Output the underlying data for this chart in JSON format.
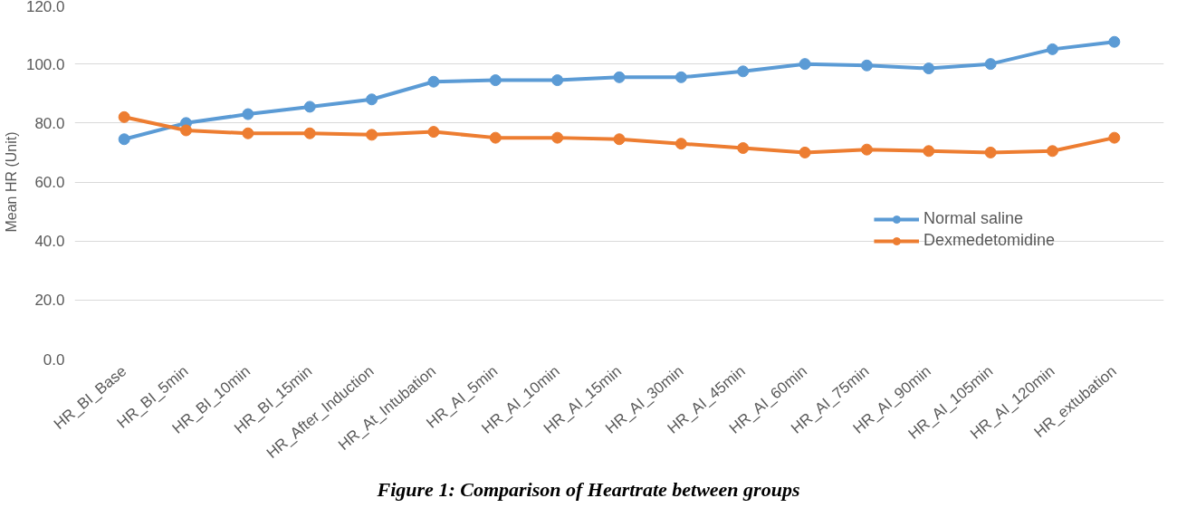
{
  "chart_data": {
    "type": "line",
    "ylabel": "Mean HR (Unit)",
    "categories": [
      "HR_BI_Base",
      "HR_BI_5min",
      "HR_BI_10min",
      "HR_BI_15min",
      "HR_After_Induction",
      "HR_At_Intubation",
      "HR_AI_5min",
      "HR_AI_10min",
      "HR_AI_15min",
      "HR_AI_30min",
      "HR_AI_45min",
      "HR_AI_60min",
      "HR_AI_75min",
      "HR_AI_90min",
      "HR_AI_105min",
      "HR_AI_120min",
      "HR_extubation"
    ],
    "series": [
      {
        "name": "Normal saline",
        "color": "#5b9bd5",
        "values": [
          74.5,
          80,
          83,
          85.5,
          88,
          94,
          94.5,
          94.5,
          95.5,
          95.5,
          97.5,
          100,
          99.5,
          98.5,
          100,
          105,
          107.5
        ]
      },
      {
        "name": "Dexmedetomidine",
        "color": "#ed7d31",
        "values": [
          82,
          77.5,
          76.5,
          76.5,
          76,
          77,
          75,
          75,
          74.5,
          73,
          71.5,
          70,
          71,
          70.5,
          70,
          70.5,
          75
        ]
      }
    ],
    "ylim": [
      0,
      120
    ],
    "yticks": [
      {
        "value": 0,
        "label": "0.0"
      },
      {
        "value": 20,
        "label": "20.0"
      },
      {
        "value": 40,
        "label": "40.0"
      },
      {
        "value": 60,
        "label": "60.0"
      },
      {
        "value": 80,
        "label": "80.0"
      },
      {
        "value": 100,
        "label": "100.0"
      },
      {
        "value": 120,
        "label": "120.0"
      }
    ],
    "grid": "y",
    "legend": "bottom right",
    "marker": "circle",
    "line_style": "solid",
    "annotations": [
      "Figure 1: Comparison of Heartrate between groups"
    ]
  }
}
